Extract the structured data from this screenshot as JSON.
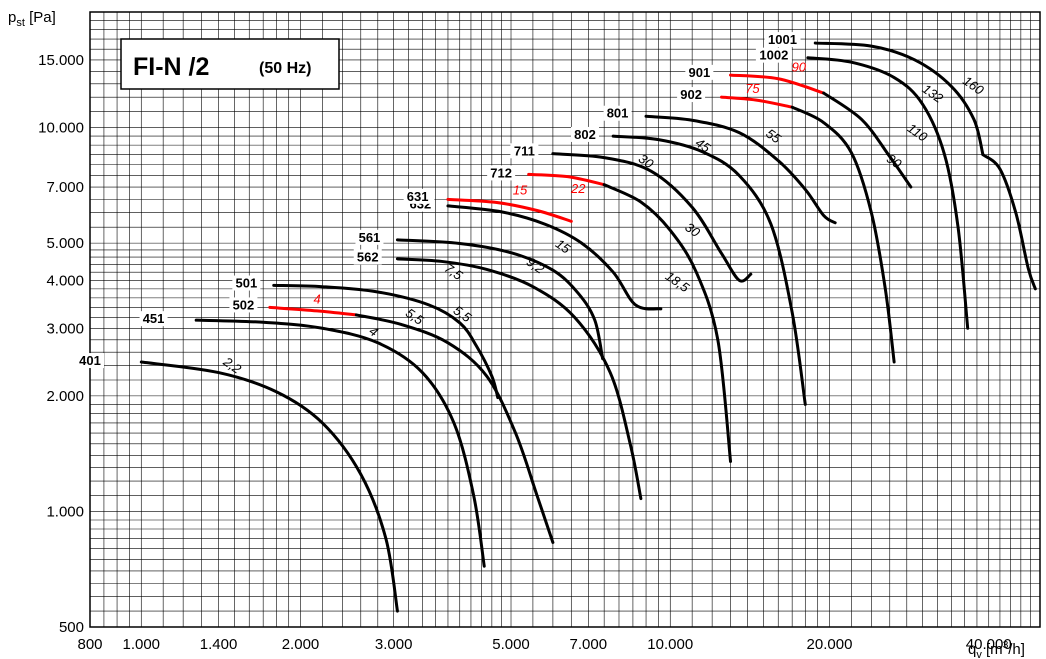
{
  "chart_data": {
    "type": "line",
    "title": "FI-N /2",
    "subtitle": "(50 Hz)",
    "x_axis": {
      "label_main": "q",
      "label_sub": "v",
      "label_unit_pre": " [m",
      "label_unit_sup": "3",
      "label_unit_post": "/h]",
      "scale": "log",
      "range": [
        800,
        50000
      ],
      "tick_values": [
        800,
        1000,
        1400,
        2000,
        3000,
        5000,
        7000,
        10000,
        20000,
        40000
      ],
      "tick_labels": [
        "800",
        "1.000",
        "1.400",
        "2.000",
        "3.000",
        "5.000",
        "7.000",
        "10.000",
        "20.000",
        "40.000"
      ]
    },
    "y_axis": {
      "label_main": "p",
      "label_sub": "st",
      "label_unit": " [Pa]",
      "scale": "log",
      "range": [
        500,
        20000
      ],
      "tick_values": [
        500,
        1000,
        2000,
        3000,
        4000,
        5000,
        7000,
        10000,
        15000
      ],
      "tick_labels": [
        "500",
        "1.000",
        "2.000",
        "3.000",
        "4.000",
        "5.000",
        "7.000",
        "10.000",
        "15.000"
      ]
    },
    "grid": true,
    "series": [
      {
        "name": "401",
        "points": [
          [
            1000,
            2450
          ],
          [
            1400,
            2300
          ],
          [
            1800,
            2050
          ],
          [
            2200,
            1700
          ],
          [
            2600,
            1250
          ],
          [
            2900,
            850
          ],
          [
            3050,
            550
          ]
        ],
        "power_labels": [
          {
            "text": "2,2",
            "x": 1470,
            "y": 2350,
            "color": "black"
          }
        ]
      },
      {
        "name": "451",
        "points": [
          [
            1270,
            3150
          ],
          [
            1700,
            3110
          ],
          [
            2200,
            3000
          ],
          [
            2800,
            2750
          ],
          [
            3400,
            2300
          ],
          [
            3900,
            1700
          ],
          [
            4250,
            1100
          ],
          [
            4450,
            720
          ]
        ],
        "power_labels": [
          {
            "text": "4",
            "x": 2720,
            "y": 2880,
            "color": "black"
          }
        ]
      },
      {
        "name": "502",
        "points": [
          [
            1750,
            3400
          ],
          [
            2150,
            3330
          ],
          [
            2550,
            3250
          ]
        ],
        "highlight": true,
        "power_labels": [
          {
            "text": "4",
            "x": 2150,
            "y": 3480,
            "color": "red"
          }
        ]
      },
      {
        "name": "502",
        "points": [
          [
            2550,
            3250
          ],
          [
            3100,
            3070
          ],
          [
            3800,
            2750
          ],
          [
            4500,
            2250
          ],
          [
            5100,
            1600
          ],
          [
            5600,
            1100
          ],
          [
            6000,
            830
          ]
        ],
        "power_labels": [
          {
            "text": "5,5",
            "x": 3250,
            "y": 3150,
            "color": "black"
          }
        ]
      },
      {
        "name": "501",
        "points": [
          [
            1780,
            3880
          ],
          [
            2200,
            3850
          ],
          [
            2800,
            3730
          ],
          [
            3500,
            3450
          ],
          [
            4000,
            3100
          ],
          [
            4300,
            2700
          ],
          [
            4600,
            2250
          ],
          [
            4720,
            1980
          ]
        ],
        "power_labels": [
          {
            "text": "5,5",
            "x": 4000,
            "y": 3200,
            "color": "black"
          }
        ]
      },
      {
        "name": "562",
        "points": [
          [
            3050,
            4550
          ],
          [
            3700,
            4480
          ],
          [
            4500,
            4270
          ],
          [
            5500,
            3850
          ],
          [
            6600,
            3200
          ],
          [
            7700,
            2300
          ],
          [
            8400,
            1500
          ],
          [
            8800,
            1080
          ]
        ],
        "power_labels": [
          {
            "text": "7,5",
            "x": 3850,
            "y": 4120,
            "color": "black"
          }
        ]
      },
      {
        "name": "561",
        "points": [
          [
            3050,
            5100
          ],
          [
            4000,
            4990
          ],
          [
            5000,
            4720
          ],
          [
            6000,
            4250
          ],
          [
            6700,
            3700
          ],
          [
            7200,
            3150
          ],
          [
            7450,
            2500
          ]
        ],
        "power_labels": [
          {
            "text": "9,2",
            "x": 5500,
            "y": 4280,
            "color": "black"
          }
        ]
      },
      {
        "name": "632",
        "points": [
          [
            3800,
            6250
          ],
          [
            4800,
            6030
          ],
          [
            5800,
            5600
          ],
          [
            6800,
            5000
          ],
          [
            7800,
            4200
          ],
          [
            8600,
            3450
          ],
          [
            9600,
            3370
          ]
        ],
        "power_labels": [
          {
            "text": "15",
            "x": 6200,
            "y": 4800,
            "color": "black"
          }
        ]
      },
      {
        "name": "631",
        "points": [
          [
            3800,
            6500
          ],
          [
            4700,
            6380
          ],
          [
            5600,
            6080
          ],
          [
            6500,
            5700
          ]
        ],
        "highlight": true,
        "power_labels": [
          {
            "text": "15",
            "x": 5200,
            "y": 6700,
            "color": "red"
          }
        ]
      },
      {
        "name": "712",
        "points": [
          [
            5400,
            7550
          ],
          [
            6400,
            7450
          ],
          [
            7500,
            7100
          ]
        ],
        "highlight": true,
        "power_labels": [
          {
            "text": "22",
            "x": 6700,
            "y": 6750,
            "color": "red"
          }
        ]
      },
      {
        "name": "712",
        "points": [
          [
            7500,
            7100
          ],
          [
            8800,
            6400
          ],
          [
            10000,
            5400
          ],
          [
            11200,
            4200
          ],
          [
            12300,
            2800
          ],
          [
            13000,
            1350
          ]
        ],
        "power_labels": [
          {
            "text": "30",
            "x": 10900,
            "y": 5300,
            "color": "black"
          }
        ]
      },
      {
        "name": "711",
        "points": [
          [
            6000,
            8550
          ],
          [
            7500,
            8350
          ],
          [
            9200,
            7700
          ],
          [
            11000,
            6200
          ],
          [
            12500,
            4700
          ],
          [
            13500,
            4000
          ],
          [
            14200,
            4150
          ]
        ],
        "power_labels": [
          {
            "text": "30",
            "x": 8900,
            "y": 8000,
            "color": "black"
          },
          {
            "text": "18,5",
            "x": 10200,
            "y": 3880,
            "color": "black"
          }
        ]
      },
      {
        "name": "802",
        "points": [
          [
            7800,
            9500
          ],
          [
            9500,
            9300
          ],
          [
            11500,
            8650
          ],
          [
            13500,
            7500
          ],
          [
            15500,
            5600
          ],
          [
            17000,
            3300
          ],
          [
            18000,
            1900
          ]
        ],
        "power_labels": [
          {
            "text": "45",
            "x": 11400,
            "y": 8800,
            "color": "black"
          }
        ]
      },
      {
        "name": "801",
        "points": [
          [
            9000,
            10700
          ],
          [
            11000,
            10450
          ],
          [
            13500,
            9700
          ],
          [
            16000,
            8200
          ],
          [
            18000,
            6900
          ],
          [
            19500,
            5900
          ],
          [
            20500,
            5650
          ]
        ],
        "power_labels": [
          {
            "text": "55",
            "x": 15500,
            "y": 9300,
            "color": "black"
          }
        ]
      },
      {
        "name": "902",
        "points": [
          [
            12500,
            12000
          ],
          [
            14500,
            11800
          ],
          [
            17000,
            11300
          ]
        ],
        "highlight": true,
        "power_labels": [
          {
            "text": "75",
            "x": 14300,
            "y": 12300,
            "color": "red"
          }
        ]
      },
      {
        "name": "902",
        "points": [
          [
            17000,
            11300
          ],
          [
            19500,
            10300
          ],
          [
            22000,
            8600
          ],
          [
            24000,
            6000
          ],
          [
            25500,
            3800
          ],
          [
            26500,
            2450
          ]
        ],
        "power_labels": [
          {
            "text": "90",
            "x": 26200,
            "y": 8000,
            "color": "black"
          }
        ]
      },
      {
        "name": "901",
        "points": [
          [
            13000,
            13700
          ],
          [
            16000,
            13400
          ],
          [
            19500,
            12300
          ]
        ],
        "highlight": true,
        "power_labels": [
          {
            "text": "90",
            "x": 17500,
            "y": 14000,
            "color": "red"
          }
        ]
      },
      {
        "name": "901",
        "points": [
          [
            19500,
            12300
          ],
          [
            23000,
            10500
          ],
          [
            26000,
            8400
          ],
          [
            28500,
            7000
          ]
        ],
        "power_labels": [
          {
            "text": "110",
            "x": 29000,
            "y": 9500,
            "color": "black"
          }
        ]
      },
      {
        "name": "1002",
        "points": [
          [
            18200,
            15200
          ],
          [
            22000,
            14800
          ],
          [
            26500,
            13500
          ],
          [
            30000,
            11500
          ],
          [
            33000,
            8500
          ],
          [
            35000,
            5500
          ],
          [
            36500,
            3000
          ]
        ],
        "power_labels": [
          {
            "text": "132",
            "x": 31000,
            "y": 12000,
            "color": "black"
          }
        ]
      },
      {
        "name": "1001",
        "points": [
          [
            18800,
            16600
          ],
          [
            24000,
            16300
          ],
          [
            29000,
            15000
          ],
          [
            34000,
            12800
          ],
          [
            37500,
            10500
          ],
          [
            39000,
            8500
          ]
        ],
        "power_labels": [
          {
            "text": "160",
            "x": 37000,
            "y": 12600,
            "color": "black"
          }
        ]
      },
      {
        "name": "1001-tail",
        "points": [
          [
            39000,
            8500
          ],
          [
            42000,
            7800
          ],
          [
            45000,
            6000
          ],
          [
            47500,
            4300
          ],
          [
            49000,
            3800
          ]
        ]
      }
    ],
    "curve_labels": [
      {
        "text": "401",
        "x": 800,
        "y": 2450
      },
      {
        "text": "451",
        "x": 1055,
        "y": 3150
      },
      {
        "text": "502",
        "x": 1560,
        "y": 3420
      },
      {
        "text": "501",
        "x": 1580,
        "y": 3900
      },
      {
        "text": "562",
        "x": 2680,
        "y": 4560
      },
      {
        "text": "561",
        "x": 2700,
        "y": 5130
      },
      {
        "text": "632",
        "x": 3370,
        "y": 6260
      },
      {
        "text": "631",
        "x": 3330,
        "y": 6560
      },
      {
        "text": "712",
        "x": 4790,
        "y": 7550
      },
      {
        "text": "711",
        "x": 5300,
        "y": 8620
      },
      {
        "text": "802",
        "x": 6900,
        "y": 9510
      },
      {
        "text": "801",
        "x": 7950,
        "y": 10800
      },
      {
        "text": "902",
        "x": 10950,
        "y": 12080
      },
      {
        "text": "901",
        "x": 11350,
        "y": 13800
      },
      {
        "text": "1002",
        "x": 15700,
        "y": 15300
      },
      {
        "text": "1001",
        "x": 16300,
        "y": 16800
      }
    ],
    "colors": {
      "highlight": "#ff0000",
      "curve": "#000000",
      "grid": "#000000"
    }
  }
}
